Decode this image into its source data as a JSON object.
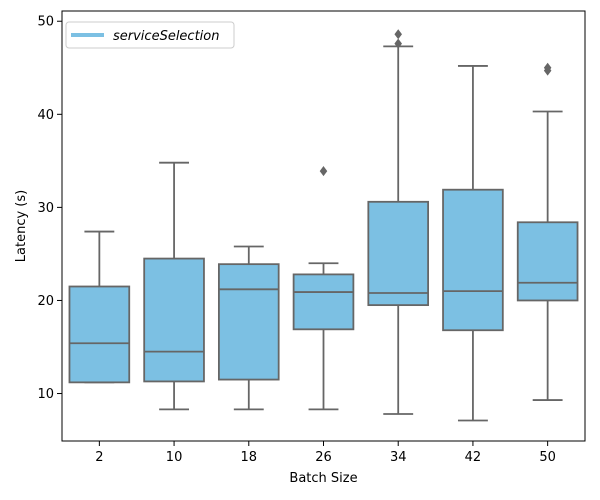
{
  "chart_data": {
    "type": "box",
    "xlabel": "Batch Size",
    "ylabel": "Latency (s)",
    "ylim": [
      4.9,
      51.1
    ],
    "yticks": [
      10,
      20,
      30,
      40,
      50
    ],
    "grid": false,
    "legend": {
      "position": "top-left",
      "entries": [
        "serviceSelection"
      ]
    },
    "series": [
      {
        "name": "serviceSelection",
        "color": "#7cc0e3",
        "categories": [
          "2",
          "10",
          "18",
          "26",
          "34",
          "42",
          "50"
        ],
        "boxes": [
          {
            "category": "2",
            "whisker_low": 11.2,
            "q1": 11.2,
            "median": 15.4,
            "q3": 21.5,
            "whisker_high": 27.4,
            "outliers": []
          },
          {
            "category": "10",
            "whisker_low": 8.3,
            "q1": 11.3,
            "median": 14.5,
            "q3": 24.5,
            "whisker_high": 34.8,
            "outliers": []
          },
          {
            "category": "18",
            "whisker_low": 8.3,
            "q1": 11.5,
            "median": 21.2,
            "q3": 23.9,
            "whisker_high": 25.8,
            "outliers": []
          },
          {
            "category": "26",
            "whisker_low": 8.3,
            "q1": 16.9,
            "median": 20.9,
            "q3": 22.8,
            "whisker_high": 24.0,
            "outliers": [
              33.9
            ]
          },
          {
            "category": "34",
            "whisker_low": 7.8,
            "q1": 19.5,
            "median": 20.8,
            "q3": 30.6,
            "whisker_high": 47.3,
            "outliers": [
              47.6,
              48.6
            ]
          },
          {
            "category": "42",
            "whisker_low": 7.1,
            "q1": 16.8,
            "median": 21.0,
            "q3": 31.9,
            "whisker_high": 45.2,
            "outliers": []
          },
          {
            "category": "50",
            "whisker_low": 9.3,
            "q1": 20.0,
            "median": 21.9,
            "q3": 28.4,
            "whisker_high": 40.3,
            "outliers": [
              44.7,
              45.0
            ]
          }
        ]
      }
    ]
  },
  "colors": {
    "box_fill": "#7cc0e3",
    "box_stroke": "#666666",
    "outlier": "#666666"
  }
}
